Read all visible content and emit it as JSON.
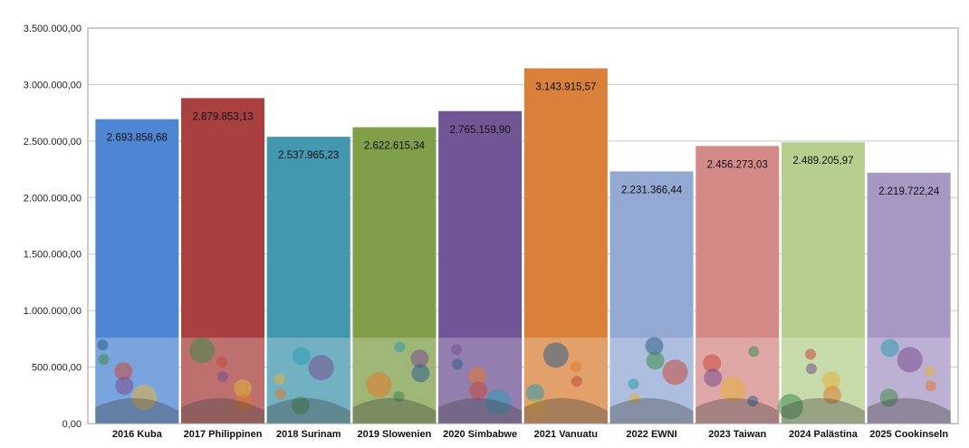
{
  "chart_data": {
    "type": "bar",
    "title": "",
    "xlabel": "",
    "ylabel": "",
    "ylim": [
      0,
      3500000
    ],
    "y_ticks": [
      0,
      500000,
      1000000,
      1500000,
      2000000,
      2500000,
      3000000,
      3500000
    ],
    "y_tick_labels": [
      "0,00",
      "500.000,00",
      "1.000.000,00",
      "1.500.000,00",
      "2.000.000,00",
      "2.500.000,00",
      "3.000.000,00",
      "3.500.000,00"
    ],
    "grid": true,
    "categories": [
      "2016 Kuba",
      "2017 Philippinen",
      "2018 Surinam",
      "2019 Slowenien",
      "2020  Simbabwe",
      "2021 Vanuatu",
      "2022 EWNI",
      "2023 Taiwan",
      "2024 Palästina",
      "2025 Cookinseln"
    ],
    "values": [
      2693858.68,
      2879853.13,
      2537965.23,
      2622615.34,
      2765159.9,
      3143915.57,
      2231366.44,
      2456273.03,
      2489205.97,
      2219722.24
    ],
    "data_labels": [
      "2.693.858,68",
      "2.879.853,13",
      "2.537.965,23",
      "2.622.615,34",
      "2.765.159,90",
      "3.143.915,57",
      "2.231.366,44",
      "2.456.273,03",
      "2.489.205,97",
      "2.219.722,24"
    ],
    "colors": [
      "#4f86d2",
      "#a7403e",
      "#4397ae",
      "#7f9f48",
      "#705694",
      "#d9803b",
      "#93a9d3",
      "#d48b88",
      "#b6cf8e",
      "#a698c3"
    ]
  }
}
